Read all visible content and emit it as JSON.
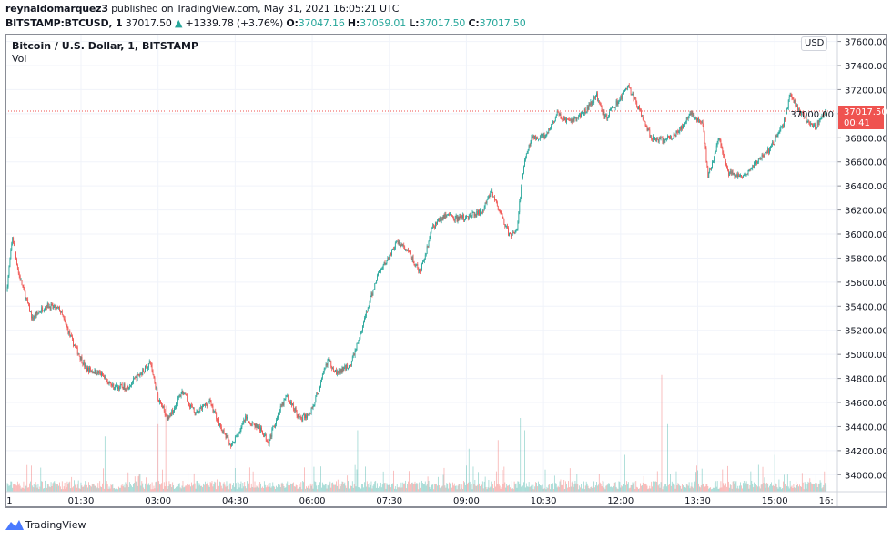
{
  "header": {
    "author": "reynaldomarquez3",
    "published_text": "published on TradingView.com, May 31, 2021 16:05:21 UTC",
    "symbol": "BITSTAMP:BTCUSD, 1",
    "last": "37017.50",
    "change": "+1339.78 (+3.76%)",
    "o_label": "O:",
    "o": "37047.16",
    "h_label": "H:",
    "h": "37059.01",
    "l_label": "L:",
    "l": "37017.50",
    "c_label": "C:",
    "c": "37017.50"
  },
  "legend": {
    "title": "Bitcoin / U.S. Dollar, 1, BITSTAMP",
    "vol": "Vol"
  },
  "price_axis": {
    "currency_button": "USD",
    "last_price": "37017.50",
    "countdown": "00:41"
  },
  "footer": {
    "brand": "TradingView"
  },
  "colors": {
    "up": "#26a69a",
    "down": "#ef5350",
    "grid": "#f0f3fa"
  },
  "chart_data": {
    "type": "candlestick",
    "title": "Bitcoin / U.S. Dollar, 1, BITSTAMP",
    "ylim": [
      33900,
      37650
    ],
    "y_ticks": [
      "37600.00",
      "37400.00",
      "37200.00",
      "37000.00",
      "36800.00",
      "36600.00",
      "36400.00",
      "36200.00",
      "36000.00",
      "35800.00",
      "35600.00",
      "35400.00",
      "35200.00",
      "35000.00",
      "34800.00",
      "34600.00",
      "34400.00",
      "34200.00",
      "34000.00"
    ],
    "x_ticks": [
      {
        "label": "1",
        "minute": 0
      },
      {
        "label": "01:30",
        "minute": 90
      },
      {
        "label": "03:00",
        "minute": 180
      },
      {
        "label": "04:30",
        "minute": 270
      },
      {
        "label": "06:00",
        "minute": 360
      },
      {
        "label": "07:30",
        "minute": 450
      },
      {
        "label": "09:00",
        "minute": 540
      },
      {
        "label": "10:30",
        "minute": 630
      },
      {
        "label": "12:00",
        "minute": 720
      },
      {
        "label": "13:30",
        "minute": 810
      },
      {
        "label": "15:00",
        "minute": 900
      },
      {
        "label": "16:",
        "minute": 960
      }
    ],
    "interval_minutes": 1,
    "price_path_minute_price": [
      [
        3,
        35523
      ],
      [
        10,
        35977
      ],
      [
        17,
        35675
      ],
      [
        33,
        35296
      ],
      [
        49,
        35410
      ],
      [
        65,
        35372
      ],
      [
        80,
        35107
      ],
      [
        96,
        34880
      ],
      [
        112,
        34842
      ],
      [
        128,
        34729
      ],
      [
        144,
        34729
      ],
      [
        160,
        34842
      ],
      [
        171,
        34933
      ],
      [
        181,
        34615
      ],
      [
        192,
        34464
      ],
      [
        208,
        34691
      ],
      [
        224,
        34502
      ],
      [
        240,
        34615
      ],
      [
        256,
        34350
      ],
      [
        266,
        34237
      ],
      [
        282,
        34464
      ],
      [
        298,
        34388
      ],
      [
        309,
        34275
      ],
      [
        320,
        34502
      ],
      [
        330,
        34653
      ],
      [
        346,
        34464
      ],
      [
        357,
        34502
      ],
      [
        367,
        34691
      ],
      [
        378,
        34956
      ],
      [
        389,
        34842
      ],
      [
        405,
        34918
      ],
      [
        415,
        35145
      ],
      [
        426,
        35410
      ],
      [
        437,
        35675
      ],
      [
        447,
        35788
      ],
      [
        460,
        35940
      ],
      [
        474,
        35826
      ],
      [
        486,
        35675
      ],
      [
        500,
        36053
      ],
      [
        516,
        36167
      ],
      [
        527,
        36129
      ],
      [
        543,
        36144
      ],
      [
        559,
        36189
      ],
      [
        569,
        36356
      ],
      [
        580,
        36167
      ],
      [
        591,
        35977
      ],
      [
        599,
        36053
      ],
      [
        607,
        36583
      ],
      [
        617,
        36810
      ],
      [
        633,
        36810
      ],
      [
        646,
        36999
      ],
      [
        660,
        36923
      ],
      [
        676,
        36999
      ],
      [
        692,
        37150
      ],
      [
        702,
        36961
      ],
      [
        718,
        37112
      ],
      [
        729,
        37226
      ],
      [
        739,
        37075
      ],
      [
        755,
        36810
      ],
      [
        771,
        36772
      ],
      [
        787,
        36848
      ],
      [
        803,
        36999
      ],
      [
        816,
        36923
      ],
      [
        822,
        36469
      ],
      [
        835,
        36810
      ],
      [
        846,
        36507
      ],
      [
        862,
        36469
      ],
      [
        877,
        36583
      ],
      [
        893,
        36696
      ],
      [
        909,
        36885
      ],
      [
        918,
        37150
      ],
      [
        931,
        36999
      ],
      [
        947,
        36885
      ],
      [
        960,
        37017.5
      ]
    ],
    "volume_spikes_minute_relative": [
      [
        118,
        0.45
      ],
      [
        180,
        0.55
      ],
      [
        189,
        0.7
      ],
      [
        413,
        0.5
      ],
      [
        543,
        0.35
      ],
      [
        577,
        0.42
      ],
      [
        603,
        0.6
      ],
      [
        608,
        0.5
      ],
      [
        725,
        0.3
      ],
      [
        768,
        0.95
      ],
      [
        775,
        0.55
      ],
      [
        900,
        0.3
      ]
    ]
  }
}
